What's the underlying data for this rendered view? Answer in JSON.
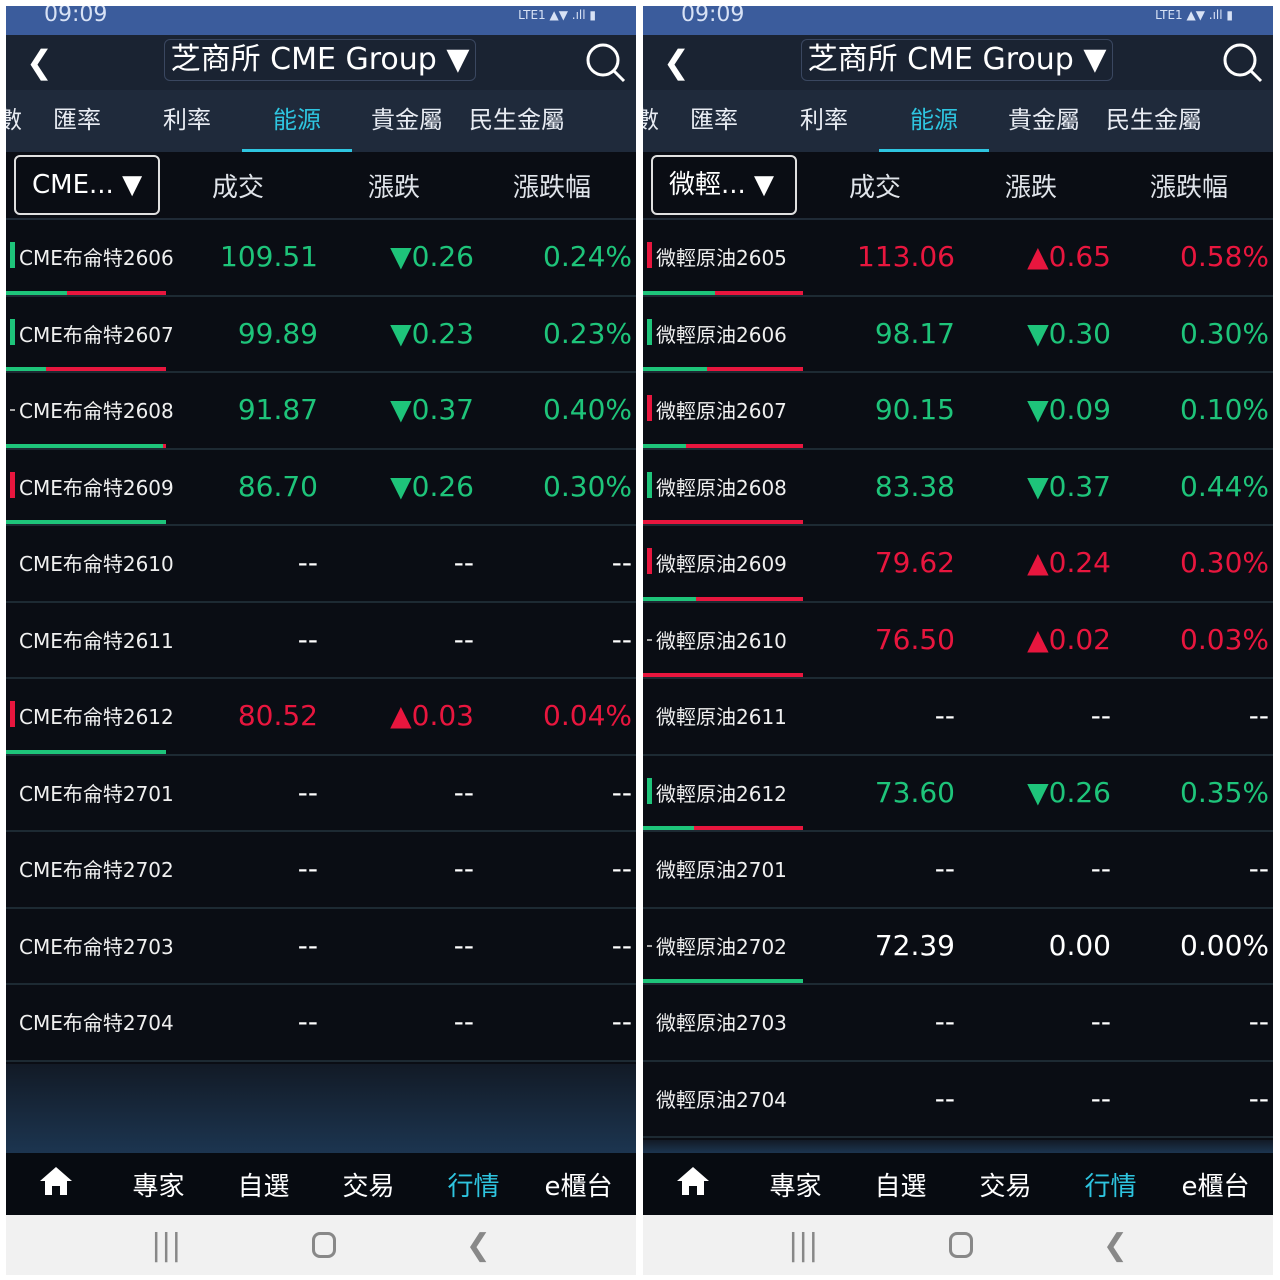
{
  "colors": {
    "up": "#e8163e",
    "down": "#1ec47a",
    "flat": "#ffffff",
    "accent": "#2ec5e0"
  },
  "panels": [
    {
      "status_time": "09:09",
      "status_right": "LTE1 ▲▼ .ıll ▮",
      "title": "芝商所 CME Group ▼",
      "tabs": [
        "數",
        "匯率",
        "利率",
        "能源",
        "貴金屬",
        "民生金屬"
      ],
      "active_tab": 3,
      "selector": "CME... ▼",
      "columns": [
        "成交",
        "漲跌",
        "漲跌幅"
      ],
      "rows": [
        {
          "name": "CME布侖特2606",
          "price": "109.51",
          "change": "▼0.26",
          "pct": "0.24%",
          "dir": "down",
          "buy_ratio": 0.38,
          "ind": "down"
        },
        {
          "name": "CME布侖特2607",
          "price": "99.89",
          "change": "▼0.23",
          "pct": "0.23%",
          "dir": "down",
          "buy_ratio": 0.25,
          "ind": "down"
        },
        {
          "name": "CME布侖特2608",
          "price": "91.87",
          "change": "▼0.37",
          "pct": "0.40%",
          "dir": "down",
          "buy_ratio": 0.98,
          "ind": "flat"
        },
        {
          "name": "CME布侖特2609",
          "price": "86.70",
          "change": "▼0.26",
          "pct": "0.30%",
          "dir": "down",
          "buy_ratio": 1,
          "ind": "up"
        },
        {
          "name": "CME布侖特2610",
          "price": "--",
          "change": "--",
          "pct": "--",
          "dir": "none"
        },
        {
          "name": "CME布侖特2611",
          "price": "--",
          "change": "--",
          "pct": "--",
          "dir": "none"
        },
        {
          "name": "CME布侖特2612",
          "price": "80.52",
          "change": "▲0.03",
          "pct": "0.04%",
          "dir": "up",
          "buy_ratio": 1,
          "ind": "up"
        },
        {
          "name": "CME布侖特2701",
          "price": "--",
          "change": "--",
          "pct": "--",
          "dir": "none"
        },
        {
          "name": "CME布侖特2702",
          "price": "--",
          "change": "--",
          "pct": "--",
          "dir": "none"
        },
        {
          "name": "CME布侖特2703",
          "price": "--",
          "change": "--",
          "pct": "--",
          "dir": "none"
        },
        {
          "name": "CME布侖特2704",
          "price": "--",
          "change": "--",
          "pct": "--",
          "dir": "none"
        }
      ],
      "nav": [
        "專家",
        "自選",
        "交易",
        "行情",
        "e櫃台"
      ],
      "active_nav": 3
    },
    {
      "status_time": "09:09",
      "status_right": "LTE1 ▲▼ .ıll ▮",
      "title": "芝商所 CME Group ▼",
      "tabs": [
        "數",
        "匯率",
        "利率",
        "能源",
        "貴金屬",
        "民生金屬"
      ],
      "active_tab": 3,
      "selector": "微輕... ▼",
      "columns": [
        "成交",
        "漲跌",
        "漲跌幅"
      ],
      "rows": [
        {
          "name": "微輕原油2605",
          "price": "113.06",
          "change": "▲0.65",
          "pct": "0.58%",
          "dir": "up",
          "buy_ratio": 0.45,
          "ind": "up"
        },
        {
          "name": "微輕原油2606",
          "price": "98.17",
          "change": "▼0.30",
          "pct": "0.30%",
          "dir": "down",
          "buy_ratio": 0.4,
          "ind": "down"
        },
        {
          "name": "微輕原油2607",
          "price": "90.15",
          "change": "▼0.09",
          "pct": "0.10%",
          "dir": "down",
          "buy_ratio": 0.27,
          "ind": "up"
        },
        {
          "name": "微輕原油2608",
          "price": "83.38",
          "change": "▼0.37",
          "pct": "0.44%",
          "dir": "down",
          "buy_ratio": 0,
          "ind": "down"
        },
        {
          "name": "微輕原油2609",
          "price": "79.62",
          "change": "▲0.24",
          "pct": "0.30%",
          "dir": "up",
          "buy_ratio": 0.33,
          "ind": "up"
        },
        {
          "name": "微輕原油2610",
          "price": "76.50",
          "change": "▲0.02",
          "pct": "0.03%",
          "dir": "up",
          "buy_ratio": 0,
          "ind": "flat"
        },
        {
          "name": "微輕原油2611",
          "price": "--",
          "change": "--",
          "pct": "--",
          "dir": "none"
        },
        {
          "name": "微輕原油2612",
          "price": "73.60",
          "change": "▼0.26",
          "pct": "0.35%",
          "dir": "down",
          "buy_ratio": 0.32,
          "ind": "down"
        },
        {
          "name": "微輕原油2701",
          "price": "--",
          "change": "--",
          "pct": "--",
          "dir": "none"
        },
        {
          "name": "微輕原油2702",
          "price": "72.39",
          "change": "0.00",
          "pct": "0.00%",
          "dir": "flat",
          "buy_ratio": 1,
          "ind": "flat"
        },
        {
          "name": "微輕原油2703",
          "price": "--",
          "change": "--",
          "pct": "--",
          "dir": "none"
        },
        {
          "name": "微輕原油2704",
          "price": "--",
          "change": "--",
          "pct": "--",
          "dir": "none"
        }
      ],
      "nav": [
        "專家",
        "自選",
        "交易",
        "行情",
        "e櫃台"
      ],
      "active_nav": 3
    }
  ]
}
